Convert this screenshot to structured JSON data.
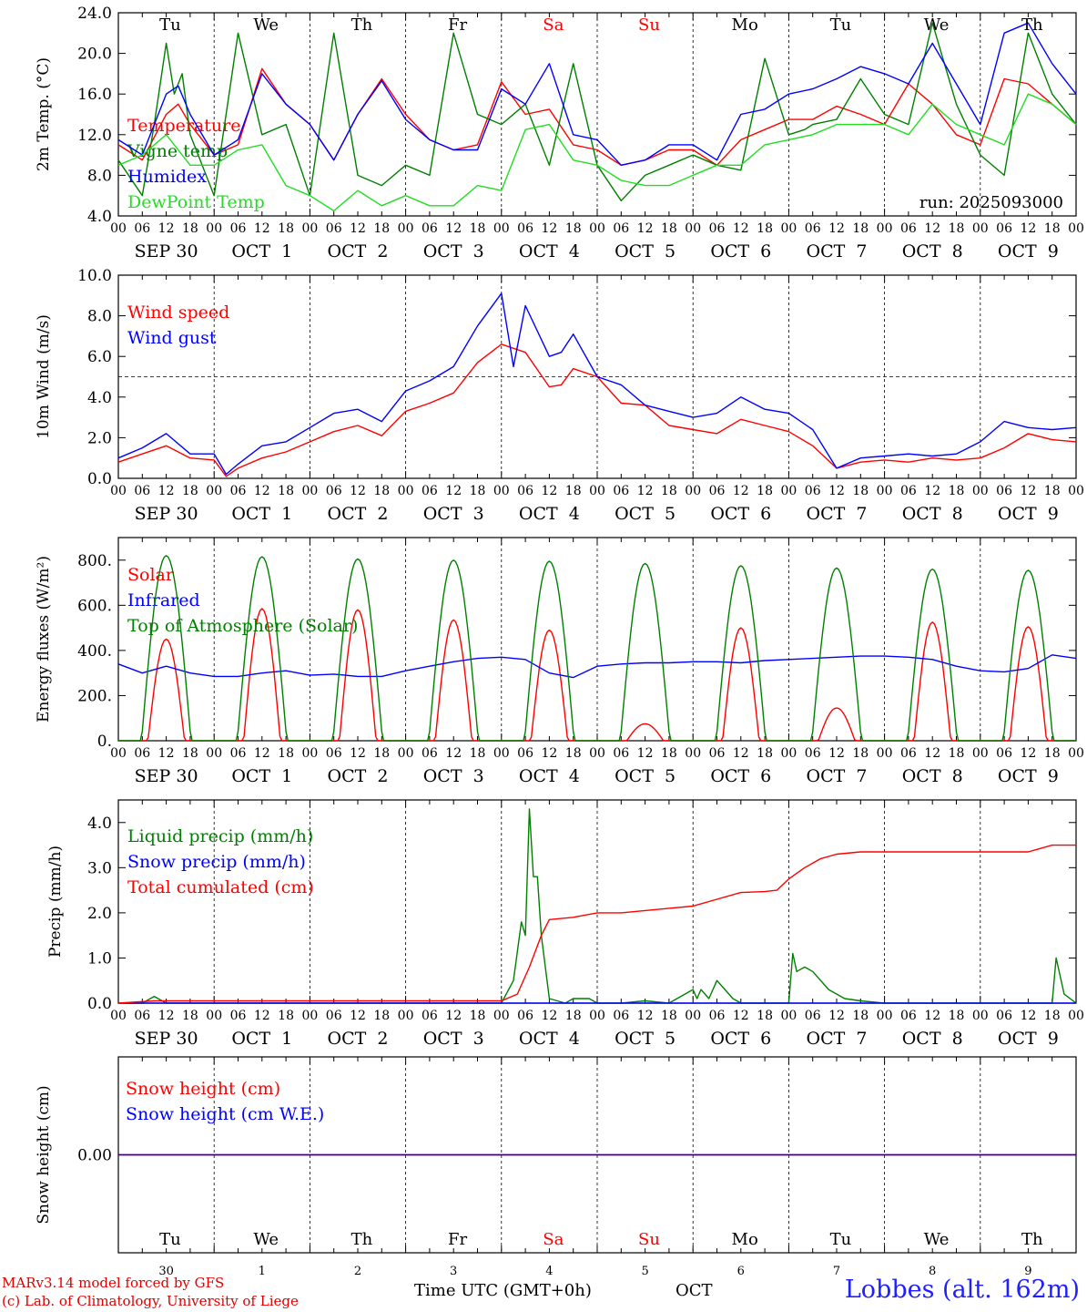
{
  "footer": {
    "credit_line1": "MARv3.14 model forced by GFS",
    "credit_line2": "(c) Lab. of Climatology, University of Liege",
    "xaxis_label": "Time UTC (GMT+0h)",
    "month_label": "OCT",
    "station": "Lobbes (alt. 162m)"
  },
  "colors": {
    "red": "#ff0000",
    "green": "#008000",
    "blue": "#0000ff",
    "lightgreen": "#22dd22",
    "weekend": "#ff0000"
  },
  "chart_data": {
    "type": "line",
    "run_label": "run: 2025093000",
    "hour_ticks": [
      "00",
      "06",
      "12",
      "18"
    ],
    "day_labels": [
      "SEP 30",
      "OCT  1",
      "OCT  2",
      "OCT  3",
      "OCT  4",
      "OCT  5",
      "OCT  6",
      "OCT  7",
      "OCT  8",
      "OCT  9"
    ],
    "weekdays": [
      "Tu",
      "We",
      "Th",
      "Fr",
      "Sa",
      "Su",
      "Mo",
      "Tu",
      "We",
      "Th"
    ],
    "weekend_index": [
      4,
      5
    ],
    "bottom_day_numbers": [
      "30",
      "1",
      "2",
      "3",
      "4",
      "5",
      "6",
      "7",
      "8",
      "9"
    ],
    "x_hours": [
      0,
      240
    ],
    "panels": [
      {
        "id": "temperature",
        "ylabel": "2m Temp. (°C)",
        "ylim": [
          4,
          24
        ],
        "yticks": [
          4,
          8,
          12,
          16,
          20,
          24
        ],
        "ytick_labels": [
          "4.0",
          "8.0",
          "12.0",
          "16.0",
          "20.0",
          "24.0"
        ],
        "series": [
          {
            "name": "Temperature",
            "color": "red",
            "x": [
              0,
              6,
              12,
              15,
              18,
              24,
              30,
              36,
              42,
              48,
              54,
              60,
              66,
              72,
              78,
              84,
              90,
              96,
              102,
              108,
              114,
              120,
              126,
              132,
              138,
              144,
              150,
              156,
              162,
              168,
              174,
              180,
              186,
              192,
              198,
              204,
              210,
              216,
              222,
              228,
              234,
              240
            ],
            "values": [
              11,
              9.5,
              14,
              15,
              13,
              10,
              11,
              18.5,
              15,
              13,
              9.5,
              14,
              17.5,
              14,
              11.5,
              10.5,
              11,
              17.2,
              14,
              14.5,
              11,
              10.5,
              9,
              9.5,
              10.5,
              10.5,
              9,
              11.5,
              12.5,
              13.5,
              13.5,
              14.8,
              14,
              13,
              17,
              15,
              12,
              11,
              17.5,
              17,
              15,
              13
            ]
          },
          {
            "name": "Vigne temp",
            "color": "green",
            "x": [
              0,
              6,
              9,
              12,
              14,
              16,
              18,
              24,
              30,
              36,
              42,
              48,
              54,
              60,
              66,
              72,
              78,
              84,
              90,
              96,
              102,
              108,
              114,
              120,
              126,
              132,
              138,
              144,
              150,
              156,
              162,
              168,
              172,
              174,
              180,
              186,
              192,
              198,
              204,
              210,
              216,
              222,
              228,
              234,
              240
            ],
            "values": [
              9.5,
              6,
              13,
              21,
              16,
              18,
              12,
              6,
              22,
              12,
              13,
              6,
              22,
              8,
              7,
              9,
              8,
              22,
              14,
              13,
              15,
              9,
              19,
              9,
              5.5,
              8,
              9,
              10,
              9,
              8.5,
              19.5,
              12,
              12.5,
              13,
              13.5,
              17.5,
              14,
              13,
              23,
              15,
              10,
              8,
              22,
              16,
              13
            ]
          },
          {
            "name": "Humidex",
            "color": "blue",
            "x": [
              0,
              6,
              12,
              15,
              18,
              24,
              30,
              36,
              42,
              48,
              54,
              60,
              66,
              72,
              78,
              84,
              90,
              96,
              102,
              108,
              114,
              120,
              126,
              132,
              138,
              144,
              150,
              156,
              162,
              168,
              174,
              180,
              186,
              192,
              198,
              204,
              210,
              216,
              222,
              228,
              234,
              240
            ],
            "values": [
              11.5,
              10,
              16,
              16.8,
              14,
              10,
              11.5,
              18,
              15,
              13,
              9.5,
              14,
              17.3,
              13.5,
              11.5,
              10.5,
              10.5,
              16.5,
              15,
              19,
              12,
              11.5,
              9,
              9.5,
              11,
              11,
              9.5,
              14,
              14.5,
              16,
              16.5,
              17.5,
              18.7,
              18,
              17,
              21,
              17,
              13,
              22,
              23,
              19,
              16
            ]
          },
          {
            "name": "DewPoint Temp",
            "color": "lightgreen",
            "x": [
              0,
              6,
              12,
              18,
              24,
              30,
              36,
              42,
              48,
              54,
              60,
              66,
              72,
              78,
              84,
              90,
              96,
              102,
              108,
              114,
              120,
              126,
              132,
              138,
              144,
              150,
              156,
              162,
              168,
              174,
              180,
              186,
              192,
              198,
              204,
              210,
              216,
              222,
              228,
              234,
              240
            ],
            "values": [
              9,
              10,
              12,
              9,
              9,
              10.5,
              11,
              7,
              6,
              4.5,
              6.5,
              5,
              6,
              5,
              5,
              7,
              6.5,
              12.5,
              13,
              9.5,
              9,
              7.5,
              7,
              7,
              8,
              9,
              9,
              11,
              11.5,
              12,
              13,
              13,
              13,
              12,
              15,
              13,
              12,
              11,
              16,
              15,
              13
            ]
          }
        ]
      },
      {
        "id": "wind",
        "ylabel": "10m Wind (m/s)",
        "ylim": [
          0,
          10
        ],
        "yticks": [
          0,
          2,
          4,
          6,
          8,
          10
        ],
        "ytick_labels": [
          "0.0",
          "2.0",
          "4.0",
          "6.0",
          "8.0",
          "10.0"
        ],
        "ref_line": 5,
        "series": [
          {
            "name": "Wind speed",
            "color": "red",
            "x": [
              0,
              6,
              12,
              18,
              24,
              27,
              30,
              36,
              42,
              48,
              54,
              60,
              66,
              72,
              78,
              84,
              90,
              96,
              102,
              108,
              111,
              114,
              120,
              126,
              132,
              138,
              144,
              150,
              156,
              162,
              168,
              174,
              180,
              186,
              192,
              198,
              204,
              210,
              216,
              222,
              228,
              234,
              240
            ],
            "values": [
              0.8,
              1.2,
              1.6,
              1.0,
              0.9,
              0.1,
              0.5,
              1.0,
              1.3,
              1.8,
              2.3,
              2.6,
              2.1,
              3.3,
              3.7,
              4.2,
              5.7,
              6.6,
              6.2,
              4.5,
              4.6,
              5.4,
              5.0,
              3.7,
              3.6,
              2.6,
              2.4,
              2.2,
              2.9,
              2.6,
              2.3,
              1.6,
              0.5,
              0.8,
              0.9,
              0.8,
              1.0,
              0.9,
              1.0,
              1.5,
              2.2,
              1.9,
              1.8
            ]
          },
          {
            "name": "Wind gust",
            "color": "blue",
            "x": [
              0,
              6,
              12,
              18,
              24,
              27,
              30,
              36,
              42,
              48,
              54,
              60,
              66,
              72,
              78,
              84,
              90,
              96,
              99,
              102,
              108,
              111,
              114,
              120,
              126,
              132,
              138,
              144,
              150,
              156,
              162,
              168,
              174,
              180,
              186,
              192,
              198,
              204,
              210,
              216,
              222,
              228,
              234,
              240
            ],
            "values": [
              1.0,
              1.5,
              2.2,
              1.2,
              1.2,
              0.2,
              0.7,
              1.6,
              1.8,
              2.5,
              3.2,
              3.4,
              2.8,
              4.3,
              4.8,
              5.5,
              7.5,
              9.1,
              5.5,
              8.5,
              6.0,
              6.2,
              7.1,
              5.0,
              4.6,
              3.6,
              3.3,
              3.0,
              3.2,
              4.0,
              3.4,
              3.2,
              2.4,
              0.5,
              1.0,
              1.1,
              1.2,
              1.1,
              1.2,
              1.8,
              2.8,
              2.5,
              2.4,
              2.5
            ]
          }
        ]
      },
      {
        "id": "energy",
        "ylabel": "Energy fluxes (W/m²)",
        "ylim": [
          0,
          900
        ],
        "yticks": [
          0,
          200,
          400,
          600,
          800
        ],
        "ytick_labels": [
          "0.",
          "200.",
          "400.",
          "600.",
          "800."
        ],
        "series": [
          {
            "name": "Solar",
            "color": "red",
            "peaks": [
              450,
              585,
              580,
              535,
              490,
              75,
              500,
              145,
              525,
              505
            ]
          },
          {
            "name": "Infrared",
            "color": "blue",
            "x": [
              0,
              6,
              12,
              18,
              24,
              30,
              36,
              42,
              48,
              54,
              60,
              66,
              72,
              78,
              84,
              90,
              96,
              102,
              108,
              114,
              120,
              126,
              132,
              138,
              144,
              150,
              156,
              162,
              168,
              174,
              180,
              186,
              192,
              198,
              204,
              210,
              216,
              222,
              228,
              234,
              240
            ],
            "values": [
              340,
              300,
              330,
              300,
              285,
              285,
              300,
              310,
              290,
              295,
              285,
              285,
              310,
              330,
              350,
              365,
              370,
              360,
              300,
              280,
              330,
              340,
              345,
              345,
              350,
              350,
              345,
              355,
              360,
              365,
              370,
              375,
              375,
              370,
              360,
              330,
              310,
              305,
              320,
              380,
              365
            ]
          },
          {
            "name": "Top of Atmosphere (Solar)",
            "color": "green",
            "peaks": [
              820,
              815,
              805,
              800,
              795,
              785,
              775,
              765,
              760,
              755
            ]
          }
        ]
      },
      {
        "id": "precip",
        "ylabel": "Precip (mm/h)",
        "ylim": [
          0,
          4.5
        ],
        "yticks": [
          0,
          1,
          2,
          3,
          4
        ],
        "ytick_labels": [
          "0.0",
          "1.0",
          "2.0",
          "3.0",
          "4.0"
        ],
        "series": [
          {
            "name": "Liquid precip (mm/h)",
            "color": "green",
            "x": [
              0,
              6,
              9,
              12,
              96,
              99,
              101,
              102,
              103,
              104,
              105,
              106,
              108,
              112,
              114,
              118,
              120,
              126,
              132,
              138,
              144,
              145,
              146,
              148,
              150,
              152,
              154,
              156,
              158,
              168,
              169,
              170,
              172,
              174,
              178,
              182,
              186,
              192,
              228,
              234,
              235,
              237,
              240
            ],
            "values": [
              0,
              0,
              0.15,
              0,
              0,
              0.5,
              1.8,
              1.5,
              4.3,
              2.8,
              2.8,
              1.5,
              0.1,
              0,
              0.1,
              0.1,
              0,
              0,
              0.05,
              0,
              0.3,
              0.1,
              0.3,
              0.1,
              0.5,
              0.3,
              0.1,
              0,
              0,
              0,
              1.1,
              0.7,
              0.8,
              0.7,
              0.3,
              0.1,
              0.05,
              0,
              0,
              0,
              1.0,
              0.2,
              0
            ]
          },
          {
            "name": "Snow precip (mm/h)",
            "color": "blue",
            "x": [
              0,
              240
            ],
            "values": [
              0,
              0
            ]
          },
          {
            "name": "Total cumulated (cm)",
            "color": "red",
            "x": [
              0,
              9,
              96,
              100,
              103,
              106,
              108,
              114,
              120,
              126,
              132,
              138,
              144,
              150,
              156,
              162,
              165,
              168,
              172,
              174,
              176,
              180,
              186,
              192,
              198,
              204,
              210,
              216,
              222,
              228,
              234,
              240
            ],
            "values": [
              0,
              0.05,
              0.05,
              0.2,
              0.8,
              1.5,
              1.85,
              1.9,
              2.0,
              2.0,
              2.05,
              2.1,
              2.15,
              2.3,
              2.45,
              2.47,
              2.5,
              2.75,
              3.0,
              3.1,
              3.2,
              3.3,
              3.35,
              3.35,
              3.35,
              3.35,
              3.35,
              3.35,
              3.35,
              3.35,
              3.5,
              3.5
            ]
          }
        ]
      },
      {
        "id": "snow",
        "ylabel": "Snow height (cm)",
        "ylim": [
          -1,
          1
        ],
        "yticks": [
          0
        ],
        "ytick_labels": [
          "0.00"
        ],
        "series": [
          {
            "name": "Snow height (cm)",
            "color": "red",
            "x": [
              0,
              240
            ],
            "values": [
              0,
              0
            ]
          },
          {
            "name": "Snow height (cm W.E.)",
            "color": "blue",
            "x": [
              0,
              240
            ],
            "values": [
              0,
              0
            ]
          }
        ]
      }
    ]
  }
}
